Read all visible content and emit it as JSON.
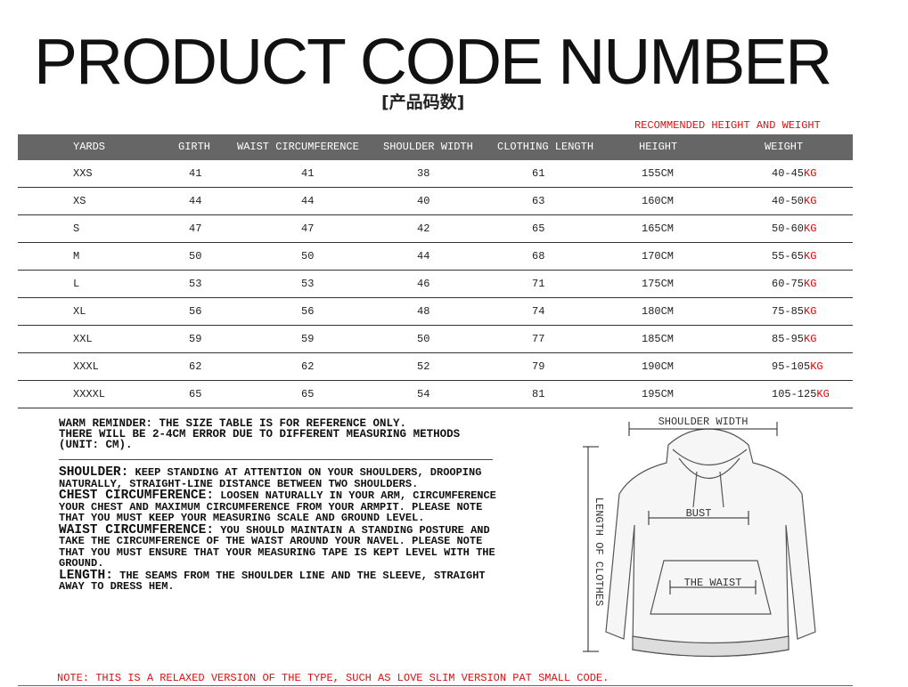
{
  "header": {
    "title": "PRODUCT CODE NUMBER",
    "subtitle": "[产品码数]",
    "recommendation": "RECOMMENDED HEIGHT AND WEIGHT"
  },
  "table": {
    "columns": [
      "YARDS",
      "GIRTH",
      "WAIST CIRCUMFERENCE",
      "SHOULDER WIDTH",
      "CLOTHING LENGTH",
      "HEIGHT",
      "WEIGHT"
    ],
    "rows": [
      [
        "XXS",
        41,
        41,
        38,
        61,
        "155CM",
        {
          "value": "40-45",
          "unit": "KG"
        }
      ],
      [
        "XS",
        44,
        44,
        40,
        63,
        "160CM",
        {
          "value": "40-50",
          "unit": "KG"
        }
      ],
      [
        "S",
        47,
        47,
        42,
        65,
        "165CM",
        {
          "value": "50-60",
          "unit": "KG"
        }
      ],
      [
        "M",
        50,
        50,
        44,
        68,
        "170CM",
        {
          "value": "55-65",
          "unit": "KG"
        }
      ],
      [
        "L",
        53,
        53,
        46,
        71,
        "175CM",
        {
          "value": "60-75",
          "unit": "KG"
        }
      ],
      [
        "XL",
        56,
        56,
        48,
        74,
        "180CM",
        {
          "value": "75-85",
          "unit": "KG"
        }
      ],
      [
        "XXL",
        59,
        59,
        50,
        77,
        "185CM",
        {
          "value": "85-95",
          "unit": "KG"
        }
      ],
      [
        "XXXL",
        62,
        62,
        52,
        79,
        "190CM",
        {
          "value": "95-105",
          "unit": "KG"
        }
      ],
      [
        "XXXXL",
        65,
        65,
        54,
        81,
        "195CM",
        {
          "value": "105-125",
          "unit": "KG"
        }
      ]
    ]
  },
  "notes": {
    "reminder": [
      "WARM REMINDER: THE SIZE TABLE IS FOR REFERENCE ONLY.",
      "THERE WILL BE 2-4CM ERROR DUE TO DIFFERENT MEASURING METHODS",
      "(UNIT: CM)."
    ],
    "sections": [
      {
        "term": "SHOULDER:",
        "text": "KEEP STANDING AT ATTENTION ON YOUR SHOULDERS, DROOPING NATURALLY, STRAIGHT-LINE DISTANCE BETWEEN TWO SHOULDERS."
      },
      {
        "term": "CHEST CIRCUMFERENCE:",
        "text": "LOOSEN NATURALLY IN YOUR ARM, CIRCUMFERENCE YOUR CHEST AND MAXIMUM CIRCUMFERENCE FROM YOUR ARMPIT. PLEASE NOTE THAT YOU MUST KEEP YOUR MEASURING SCALE AND GROUND LEVEL."
      },
      {
        "term": "WAIST CIRCUMFERENCE:",
        "text": "YOU SHOULD MAINTAIN A STANDING POSTURE AND TAKE THE CIRCUMFERENCE OF THE WAIST AROUND YOUR NAVEL. PLEASE NOTE THAT YOU MUST ENSURE THAT YOUR MEASURING TAPE IS KEPT LEVEL WITH THE GROUND."
      },
      {
        "term": "LENGTH:",
        "text": "THE SEAMS FROM THE SHOULDER LINE AND THE SLEEVE, STRAIGHT AWAY TO DRESS HEM."
      }
    ]
  },
  "diagram": {
    "shoulder_width": "SHOULDER WIDTH",
    "bust": "BUST",
    "waist": "THE WAIST",
    "length": "LENGTH OF CLOTHES"
  },
  "footnote": "NOTE: THIS IS A RELAXED VERSION OF THE TYPE, SUCH AS LOVE SLIM VERSION PAT SMALL CODE."
}
